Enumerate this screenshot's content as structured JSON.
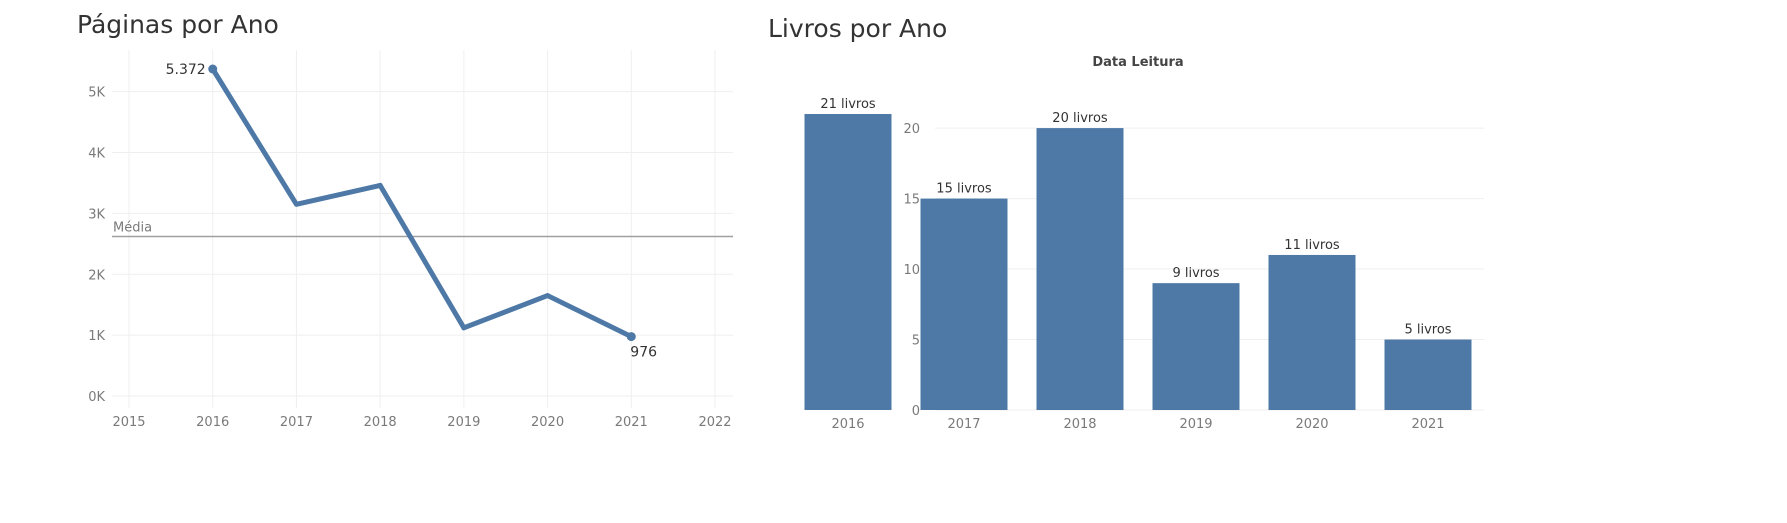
{
  "colors": {
    "mark": "#4e79a7",
    "grid": "#efefef",
    "reference_line": "#a0a0a0",
    "axis_text": "#7a7a7a",
    "label_text": "#333333"
  },
  "chart_data": [
    {
      "type": "line",
      "title": "Páginas por Ano",
      "x": [
        2016,
        2017,
        2018,
        2019,
        2020,
        2021
      ],
      "y": [
        5372,
        3150,
        3460,
        1120,
        1650,
        976
      ],
      "x_ticks": [
        "2015",
        "2016",
        "2017",
        "2018",
        "2019",
        "2020",
        "2021",
        "2022"
      ],
      "x_range": [
        2015,
        2022
      ],
      "y_ticks": [
        "0K",
        "1K",
        "2K",
        "3K",
        "4K",
        "5K"
      ],
      "y_range": [
        0,
        5600
      ],
      "data_labels": [
        {
          "x": 2016,
          "text": "5.372"
        },
        {
          "x": 2021,
          "text": "976"
        }
      ],
      "reference_line": {
        "label": "Média",
        "value": 2620
      },
      "grid": true
    },
    {
      "type": "bar",
      "title": "Livros por Ano",
      "subtitle": "Data Leitura",
      "categories": [
        "2016",
        "2017",
        "2018",
        "2019",
        "2020",
        "2021"
      ],
      "values": [
        21,
        15,
        20,
        9,
        11,
        5
      ],
      "data_labels": [
        "21 livros",
        "15 livros",
        "20 livros",
        "9 livros",
        "11 livros",
        "5 livros"
      ],
      "y_ticks": [
        "0",
        "5",
        "10",
        "15",
        "20"
      ],
      "y_range": [
        0,
        22
      ],
      "grid": true
    }
  ]
}
